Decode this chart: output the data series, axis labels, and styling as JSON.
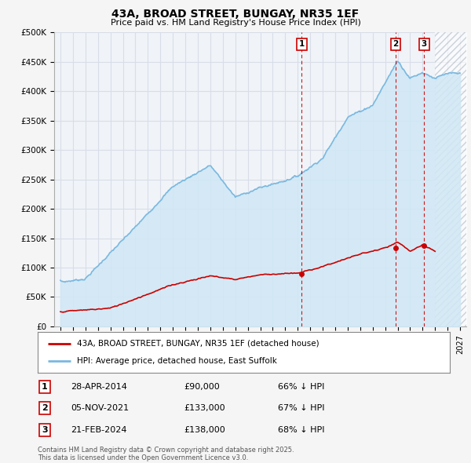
{
  "title": "43A, BROAD STREET, BUNGAY, NR35 1EF",
  "subtitle": "Price paid vs. HM Land Registry's House Price Index (HPI)",
  "legend_line1": "43A, BROAD STREET, BUNGAY, NR35 1EF (detached house)",
  "legend_line2": "HPI: Average price, detached house, East Suffolk",
  "footer": "Contains HM Land Registry data © Crown copyright and database right 2025.\nThis data is licensed under the Open Government Licence v3.0.",
  "transactions": [
    {
      "num": "1",
      "date": "28-APR-2014",
      "price": "£90,000",
      "pct": "66% ↓ HPI",
      "x": 2014.33,
      "y_price": 90000
    },
    {
      "num": "2",
      "date": "05-NOV-2021",
      "price": "£133,000",
      "pct": "67% ↓ HPI",
      "x": 2021.84,
      "y_price": 133000
    },
    {
      "num": "3",
      "date": "21-FEB-2024",
      "price": "£138,000",
      "pct": "68% ↓ HPI",
      "x": 2024.13,
      "y_price": 138000
    }
  ],
  "hpi_color": "#7ab8e0",
  "hpi_fill_color": "#d0e8f5",
  "price_color": "#cc0000",
  "vline_color": "#cc0000",
  "bg_color": "#f5f5f5",
  "plot_bg": "#f0f4f8",
  "grid_color": "#d8dde8",
  "future_hatch_color": "#c0c8d8",
  "ylim": [
    0,
    500000
  ],
  "xlim": [
    1994.5,
    2027.5
  ],
  "future_start": 2025.0,
  "yticks": [
    0,
    50000,
    100000,
    150000,
    200000,
    250000,
    300000,
    350000,
    400000,
    450000,
    500000
  ],
  "ytick_labels": [
    "£0",
    "£50K",
    "£100K",
    "£150K",
    "£200K",
    "£250K",
    "£300K",
    "£350K",
    "£400K",
    "£450K",
    "£500K"
  ],
  "xticks": [
    1995,
    1996,
    1997,
    1998,
    1999,
    2000,
    2001,
    2002,
    2003,
    2004,
    2005,
    2006,
    2007,
    2008,
    2009,
    2010,
    2011,
    2012,
    2013,
    2014,
    2015,
    2016,
    2017,
    2018,
    2019,
    2020,
    2021,
    2022,
    2023,
    2024,
    2025,
    2026,
    2027
  ]
}
